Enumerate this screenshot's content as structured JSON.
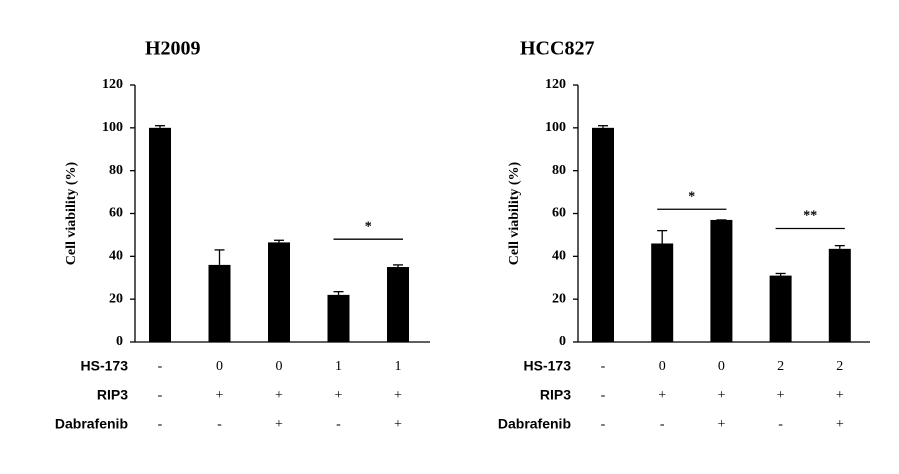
{
  "chart_data": [
    {
      "type": "bar",
      "title": "H2009",
      "y_label": "Cell viability (%)",
      "categories": [
        null,
        null,
        null,
        null,
        null
      ],
      "values": [
        100,
        36,
        46.5,
        22,
        35
      ],
      "errors": [
        1,
        7,
        1,
        1.5,
        1
      ],
      "color": "#000000",
      "ylim": [
        0,
        120
      ],
      "yticks": [
        0,
        20,
        40,
        60,
        80,
        100,
        120
      ],
      "conditions": [
        {
          "label": "HS-173",
          "values": [
            "-",
            "0",
            "0",
            "1",
            "1"
          ]
        },
        {
          "label": "RIP3",
          "values": [
            "-",
            "+",
            "+",
            "+",
            "+"
          ]
        },
        {
          "label": "Dabrafenib",
          "values": [
            "-",
            "-",
            "+",
            "-",
            "+"
          ]
        }
      ],
      "annotations": [
        {
          "text": "*",
          "bars": [
            3,
            4
          ],
          "y": 48
        }
      ]
    },
    {
      "type": "bar",
      "title": "HCC827",
      "y_label": "Cell viability (%)",
      "categories": [
        null,
        null,
        null,
        null,
        null
      ],
      "values": [
        100,
        46,
        57,
        31,
        43.5
      ],
      "errors": [
        1,
        6,
        0,
        1,
        1.5
      ],
      "color": "#000000",
      "ylim": [
        0,
        120
      ],
      "yticks": [
        0,
        20,
        40,
        60,
        80,
        100,
        120
      ],
      "conditions": [
        {
          "label": "HS-173",
          "values": [
            "-",
            "0",
            "0",
            "2",
            "2"
          ]
        },
        {
          "label": "RIP3",
          "values": [
            "-",
            "+",
            "+",
            "+",
            "+"
          ]
        },
        {
          "label": "Dabrafenib",
          "values": [
            "-",
            "-",
            "+",
            "-",
            "+"
          ]
        }
      ],
      "annotations": [
        {
          "text": "*",
          "bars": [
            1,
            2
          ],
          "y": 62
        },
        {
          "text": "**",
          "bars": [
            3,
            4
          ],
          "y": 53
        }
      ]
    }
  ]
}
